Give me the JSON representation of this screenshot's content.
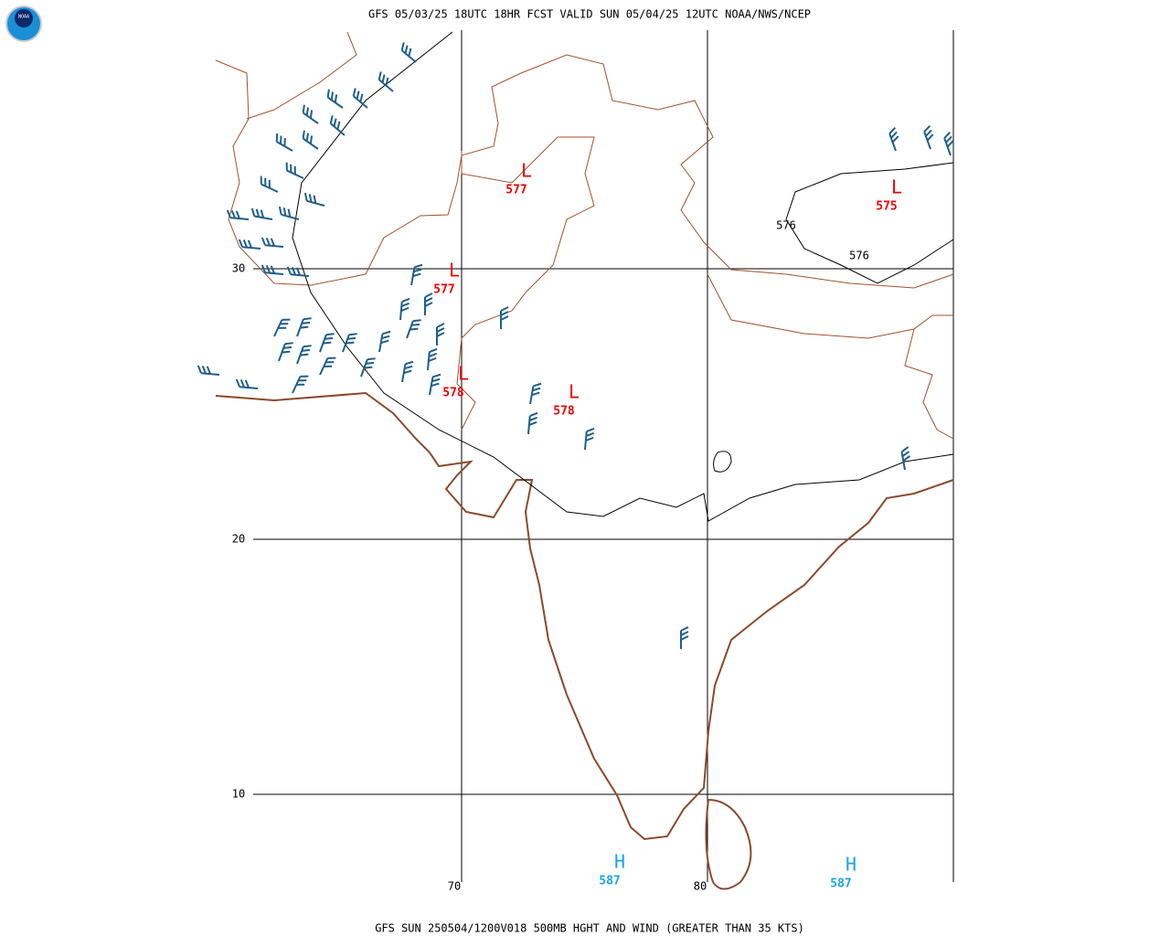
{
  "header": {
    "title": "GFS 05/03/25 18UTC 18HR FCST VALID SUN 05/04/25 12UTC NOAA/NWS/NCEP",
    "logo": "NOAA"
  },
  "footer": {
    "caption": "GFS SUN 250504/1200V018 500MB HGHT AND WIND (GREATER THAN 35 KTS)"
  },
  "map": {
    "lat_labels": [
      "30",
      "20",
      "10"
    ],
    "lon_labels": [
      "70",
      "80"
    ],
    "centers": [
      {
        "symbol": "L",
        "value": "577"
      },
      {
        "symbol": "L",
        "value": "577"
      },
      {
        "symbol": "L",
        "value": "578"
      },
      {
        "symbol": "L",
        "value": "578"
      },
      {
        "symbol": "L",
        "value": "575"
      },
      {
        "symbol": "H",
        "value": "587"
      },
      {
        "symbol": "H",
        "value": "587"
      }
    ],
    "contour_labels": [
      "576",
      "576"
    ]
  }
}
